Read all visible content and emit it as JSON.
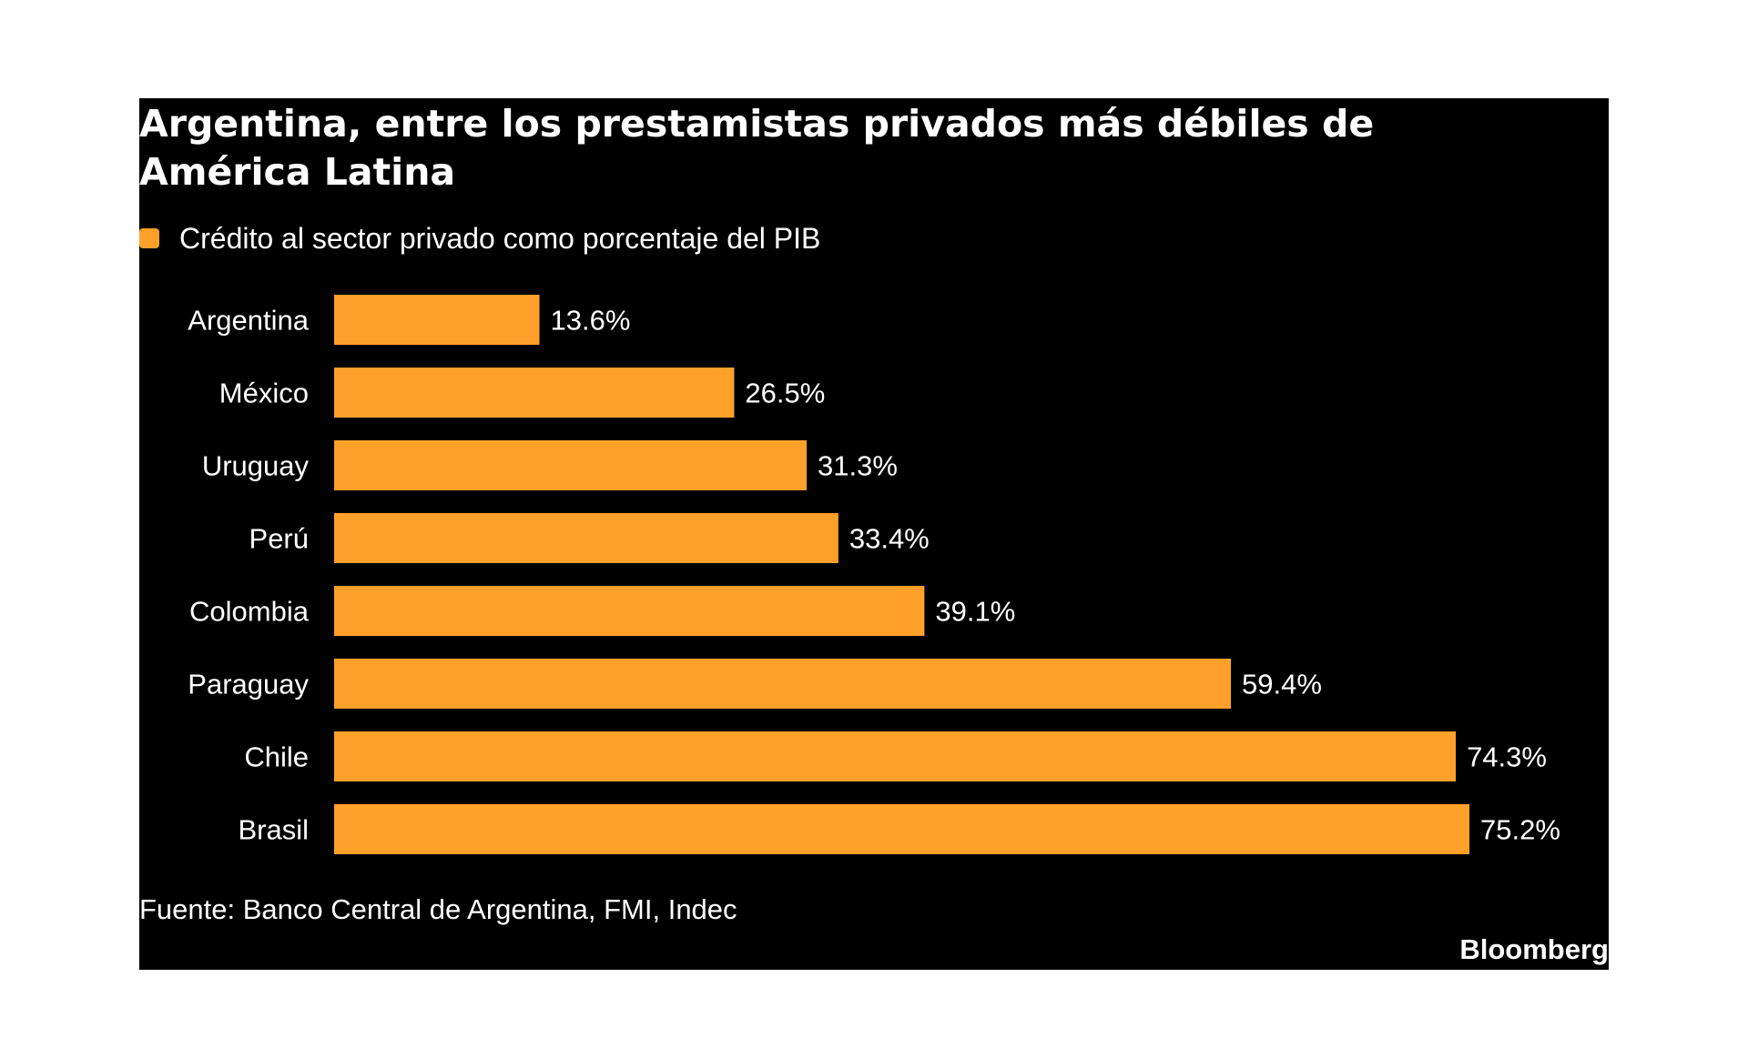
{
  "chart_data": {
    "type": "bar",
    "orientation": "horizontal",
    "title": "Argentina, entre los prestamistas privados más débiles de América Latina",
    "categories": [
      "Argentina",
      "México",
      "Uruguay",
      "Perú",
      "Colombia",
      "Paraguay",
      "Chile",
      "Brasil"
    ],
    "series": [
      {
        "name": "Crédito al sector privado como porcentaje del PIB",
        "values": [
          13.6,
          26.5,
          31.3,
          33.4,
          39.1,
          59.4,
          74.3,
          75.2
        ]
      }
    ],
    "data_labels": [
      "13.6%",
      "26.5%",
      "31.3%",
      "33.4%",
      "39.1%",
      "59.4%",
      "74.3%",
      "75.2%"
    ],
    "xlabel": "",
    "ylabel": "",
    "grid": false,
    "legend_position": "top-left",
    "colors": {
      "bar": "#FFA02B",
      "background": "#000000",
      "text": "#FFFFFF"
    }
  },
  "source": "Fuente: Banco Central de Argentina, FMI, Indec",
  "brand": "Bloomberg"
}
